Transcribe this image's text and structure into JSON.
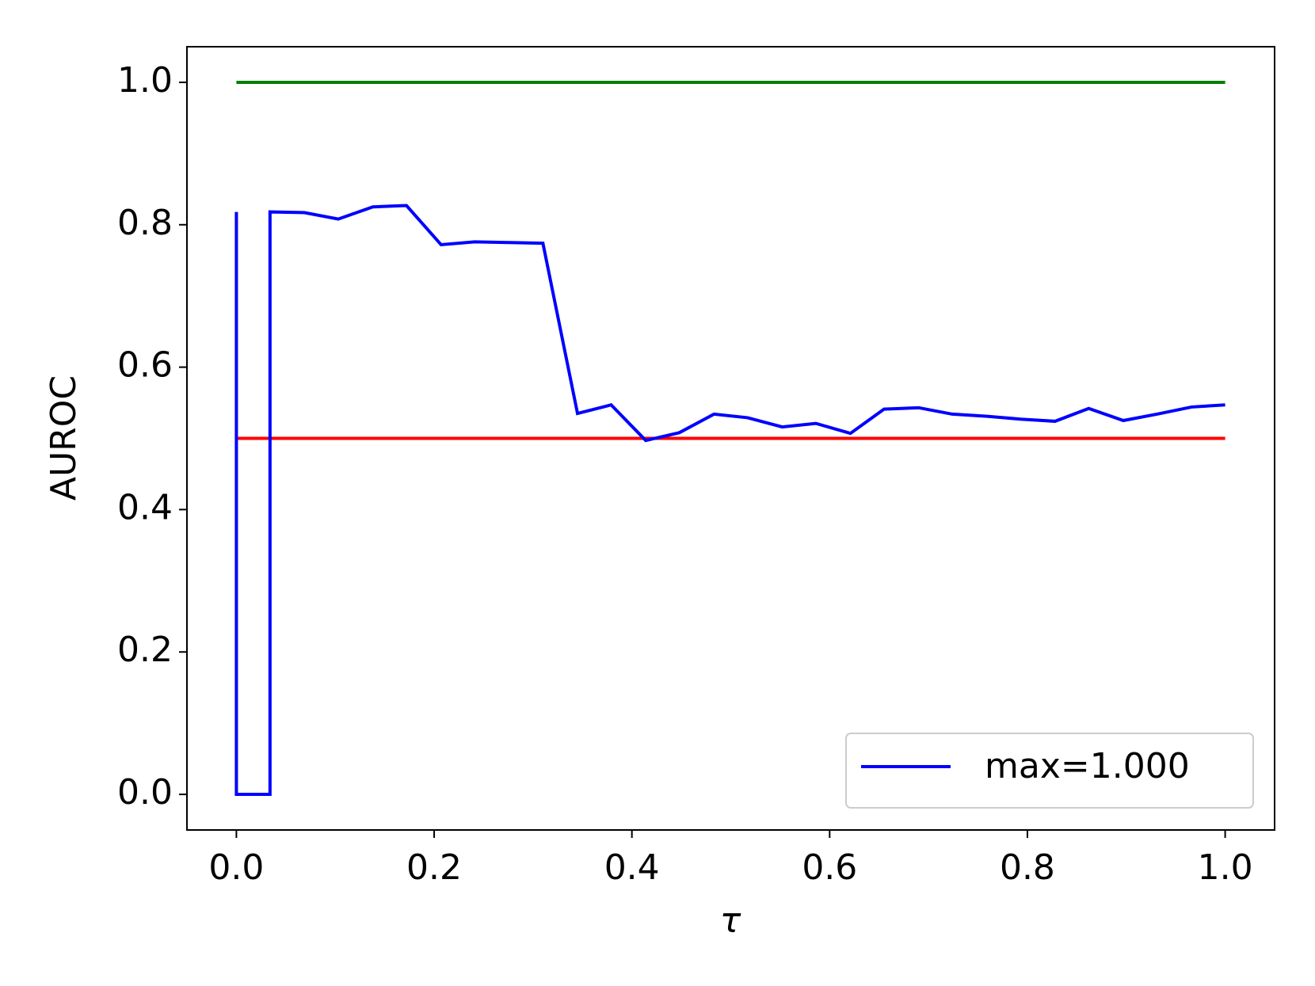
{
  "chart_data": {
    "type": "line",
    "x_label": "τ",
    "y_label": "AUROC",
    "xlim": [
      -0.05,
      1.05
    ],
    "ylim": [
      -0.05,
      1.05
    ],
    "xticks": [
      {
        "value": 0,
        "label": "0.0"
      },
      0.2,
      0.4,
      0.6,
      0.8,
      {
        "value": 1,
        "label": "1.0"
      }
    ],
    "yticks": [
      {
        "value": 0,
        "label": "0.0"
      },
      0.2,
      0.4,
      0.6,
      0.8,
      {
        "value": 1,
        "label": "1.0"
      }
    ],
    "legend": "lower right",
    "series": [
      {
        "name": "max=1.000",
        "color": "#0000ff",
        "x": [
          0,
          0,
          0.034,
          0.034,
          0.069,
          0.103,
          0.138,
          0.172,
          0.207,
          0.241,
          0.276,
          0.31,
          0.345,
          0.379,
          0.414,
          0.448,
          0.483,
          0.517,
          0.552,
          0.586,
          0.621,
          0.655,
          0.69,
          0.724,
          0.759,
          0.793,
          0.828,
          0.862,
          0.897,
          0.931,
          0.966,
          1.0
        ],
        "values": [
          0.818,
          0,
          0,
          0.818,
          0.817,
          0.808,
          0.825,
          0.827,
          0.772,
          0.776,
          0.775,
          0.774,
          0.535,
          0.547,
          0.497,
          0.508,
          0.534,
          0.529,
          0.516,
          0.521,
          0.507,
          0.541,
          0.543,
          0.534,
          0.531,
          0.527,
          0.524,
          0.542,
          0.525,
          0.534,
          0.544,
          0.547
        ]
      },
      {
        "color": "#008000",
        "x": [
          0,
          1
        ],
        "values": [
          1,
          1
        ]
      },
      {
        "color": "#ff0000",
        "x": [
          0,
          1
        ],
        "values": [
          0.5,
          0.5
        ]
      }
    ]
  }
}
